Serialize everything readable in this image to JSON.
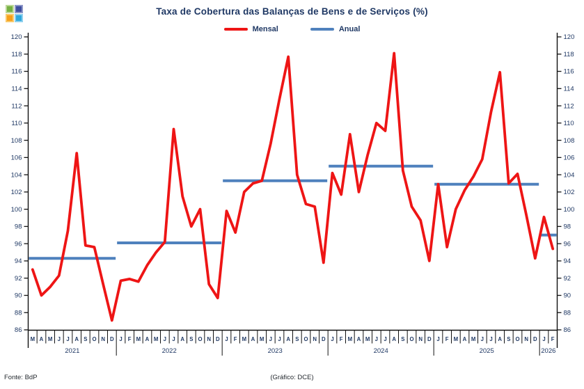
{
  "page": {
    "background": "#FFFFFF"
  },
  "header": {
    "title": "Taxa de Cobertura das Balanças de Bens e de Serviços (%)",
    "title_color": "#1F3864"
  },
  "logo": {
    "description": "four-colored-squares-logo",
    "colors": [
      "#76B043",
      "#3D4E9E",
      "#F6A01A",
      "#2FA8DC"
    ]
  },
  "legend": [
    {
      "label": "Mensal",
      "color": "#EE1515"
    },
    {
      "label": "Anual",
      "color": "#4F81BD"
    }
  ],
  "footer": {
    "source": "Fonte: BdP",
    "credit": "(Gráfico: DCE)"
  },
  "chart_data": {
    "type": "line",
    "title": "Taxa de Cobertura das Balanças de Bens e de Serviços (%)",
    "xlabel": "",
    "ylabel": "",
    "ylim": [
      86,
      120
    ],
    "ytick_step": 2,
    "grid": false,
    "legend_position": "top-center",
    "axis_label_color": "#1F3864",
    "x_start": "2021-03",
    "x_end": "2026-02",
    "month_letters": [
      "M",
      "A",
      "M",
      "J",
      "J",
      "A",
      "S",
      "O",
      "N",
      "D",
      "J",
      "F",
      "M",
      "A",
      "M",
      "J",
      "J",
      "A",
      "S",
      "O",
      "N",
      "D",
      "J",
      "F",
      "M",
      "A",
      "M",
      "J",
      "J",
      "A",
      "S",
      "O",
      "N",
      "D",
      "J",
      "F",
      "M",
      "A",
      "M",
      "J",
      "J",
      "A",
      "S",
      "O",
      "N",
      "D",
      "J",
      "F",
      "M",
      "A",
      "M",
      "J",
      "J",
      "A",
      "S",
      "O",
      "N",
      "D",
      "J",
      "F"
    ],
    "series": [
      {
        "name": "Mensal",
        "color": "#EE1515",
        "values": [
          93.0,
          90.0,
          91.0,
          92.3,
          97.5,
          106.5,
          95.8,
          95.6,
          91.3,
          87.1,
          91.7,
          91.9,
          91.6,
          93.5,
          95.0,
          96.2,
          109.3,
          101.5,
          98.0,
          100.0,
          91.3,
          89.7,
          99.8,
          97.3,
          102.0,
          103.0,
          103.3,
          107.6,
          112.8,
          117.7,
          104.0,
          100.6,
          100.3,
          93.8,
          104.2,
          101.7,
          108.7,
          102.0,
          106.3,
          110.0,
          109.1,
          118.1,
          104.5,
          100.3,
          98.7,
          94.0,
          102.9,
          95.6,
          100.0,
          102.2,
          103.8,
          105.8,
          111.3,
          115.9,
          103.0,
          104.1,
          99.3,
          94.3,
          99.1,
          95.4
        ]
      }
    ],
    "annual_series": {
      "name": "Anual",
      "color": "#4F81BD",
      "segments": [
        {
          "year": "2021",
          "start_index": 0,
          "month_count": 10,
          "value": 94.3
        },
        {
          "year": "2022",
          "start_index": 10,
          "month_count": 12,
          "value": 96.1
        },
        {
          "year": "2023",
          "start_index": 22,
          "month_count": 12,
          "value": 103.3
        },
        {
          "year": "2024",
          "start_index": 34,
          "month_count": 12,
          "value": 105.0
        },
        {
          "year": "2025",
          "start_index": 46,
          "month_count": 12,
          "value": 102.9
        },
        {
          "year": "2026",
          "start_index": 58,
          "month_count": 2,
          "value": 97.0
        }
      ]
    }
  }
}
